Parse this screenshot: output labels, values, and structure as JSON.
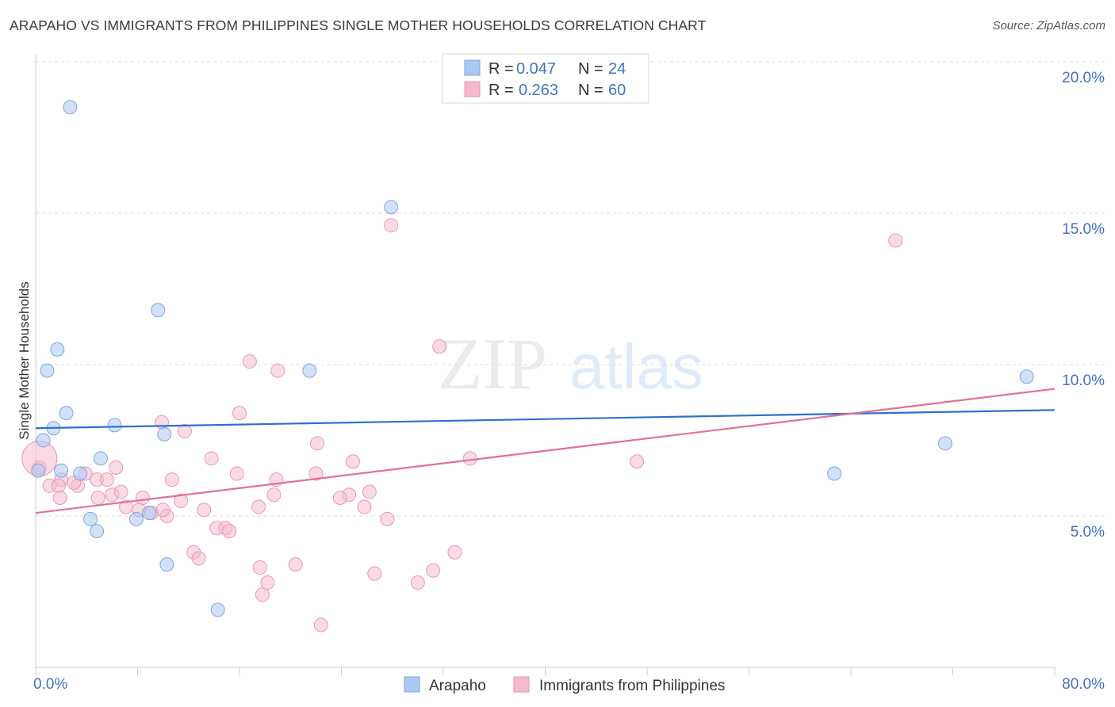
{
  "title": "ARAPAHO VS IMMIGRANTS FROM PHILIPPINES SINGLE MOTHER HOUSEHOLDS CORRELATION CHART",
  "source": "Source: ZipAtlas.com",
  "colors": {
    "arapaho": "#a9c8f2",
    "arapaho_line": "#2f6fd0",
    "philippines": "#f6b8cb",
    "philippines_line": "#e46f99",
    "tick": "#4472c4"
  },
  "legend_box": {
    "rows": [
      {
        "r_label": "R = ",
        "r_value": "0.047",
        "n_label": "N = ",
        "n_value": "24"
      },
      {
        "r_label": "R = ",
        "r_value": "0.263",
        "n_label": "N = ",
        "n_value": "60"
      }
    ]
  },
  "chart_data": {
    "type": "scatter",
    "title": "ARAPAHO VS IMMIGRANTS FROM PHILIPPINES SINGLE MOTHER HOUSEHOLDS CORRELATION CHART",
    "xlabel": "",
    "ylabel": "Single Mother Households",
    "xlim": [
      0,
      80
    ],
    "ylim": [
      0,
      20
    ],
    "x_tick_labels": [
      "0.0%",
      "80.0%"
    ],
    "y_ticks": [
      5,
      10,
      15,
      20
    ],
    "y_tick_labels": [
      "5.0%",
      "10.0%",
      "15.0%",
      "20.0%"
    ],
    "grid": true,
    "legend_position": "bottom",
    "watermark": {
      "zip": "ZIP",
      "atlas": "atlas"
    },
    "series": [
      {
        "name": "Arapaho",
        "trend": [
          [
            0,
            7.9
          ],
          [
            80,
            8.5
          ]
        ],
        "points": [
          [
            2.7,
            18.5
          ],
          [
            27.9,
            15.2
          ],
          [
            9.6,
            11.8
          ],
          [
            1.7,
            10.5
          ],
          [
            0.9,
            9.8
          ],
          [
            21.5,
            9.8
          ],
          [
            77.8,
            9.6
          ],
          [
            2.4,
            8.4
          ],
          [
            6.2,
            8.0
          ],
          [
            1.4,
            7.9
          ],
          [
            10.1,
            7.7
          ],
          [
            0.6,
            7.5
          ],
          [
            71.4,
            7.4
          ],
          [
            5.1,
            6.9
          ],
          [
            2.0,
            6.5
          ],
          [
            0.2,
            6.5
          ],
          [
            3.5,
            6.4
          ],
          [
            62.7,
            6.4
          ],
          [
            8.9,
            5.1
          ],
          [
            7.9,
            4.9
          ],
          [
            4.3,
            4.9
          ],
          [
            4.8,
            4.5
          ],
          [
            10.3,
            3.4
          ],
          [
            14.3,
            1.9
          ]
        ]
      },
      {
        "name": "Immigrants from Philippines",
        "trend": [
          [
            0,
            5.1
          ],
          [
            80,
            9.2
          ]
        ],
        "points": [
          [
            27.9,
            14.6
          ],
          [
            67.5,
            14.1
          ],
          [
            31.7,
            10.6
          ],
          [
            16.8,
            10.1
          ],
          [
            19.0,
            9.8
          ],
          [
            16.0,
            8.4
          ],
          [
            9.9,
            8.1
          ],
          [
            11.7,
            7.8
          ],
          [
            22.1,
            7.4
          ],
          [
            34.1,
            6.9
          ],
          [
            13.8,
            6.9
          ],
          [
            24.9,
            6.8
          ],
          [
            47.2,
            6.8
          ],
          [
            6.3,
            6.6
          ],
          [
            0.3,
            6.6
          ],
          [
            3.9,
            6.4
          ],
          [
            15.8,
            6.4
          ],
          [
            22.0,
            6.4
          ],
          [
            10.7,
            6.2
          ],
          [
            18.9,
            6.2
          ],
          [
            4.8,
            6.2
          ],
          [
            2.0,
            6.2
          ],
          [
            1.1,
            6.0
          ],
          [
            3.3,
            6.0
          ],
          [
            1.8,
            6.0
          ],
          [
            26.2,
            5.8
          ],
          [
            6.0,
            5.7
          ],
          [
            18.7,
            5.7
          ],
          [
            24.6,
            5.7
          ],
          [
            1.9,
            5.6
          ],
          [
            8.4,
            5.6
          ],
          [
            4.9,
            5.6
          ],
          [
            23.9,
            5.6
          ],
          [
            11.4,
            5.5
          ],
          [
            7.1,
            5.3
          ],
          [
            17.5,
            5.3
          ],
          [
            25.8,
            5.3
          ],
          [
            8.1,
            5.2
          ],
          [
            13.2,
            5.2
          ],
          [
            9.1,
            5.1
          ],
          [
            10.3,
            5.0
          ],
          [
            27.6,
            4.9
          ],
          [
            14.2,
            4.6
          ],
          [
            14.9,
            4.6
          ],
          [
            15.2,
            4.5
          ],
          [
            12.4,
            3.8
          ],
          [
            32.9,
            3.8
          ],
          [
            12.8,
            3.6
          ],
          [
            20.4,
            3.4
          ],
          [
            17.6,
            3.3
          ],
          [
            31.2,
            3.2
          ],
          [
            26.6,
            3.1
          ],
          [
            30.0,
            2.8
          ],
          [
            18.2,
            2.8
          ],
          [
            17.8,
            2.4
          ],
          [
            22.4,
            1.4
          ],
          [
            10.0,
            5.2
          ],
          [
            5.6,
            6.2
          ],
          [
            3.0,
            6.1
          ],
          [
            6.7,
            5.8
          ]
        ]
      }
    ]
  }
}
